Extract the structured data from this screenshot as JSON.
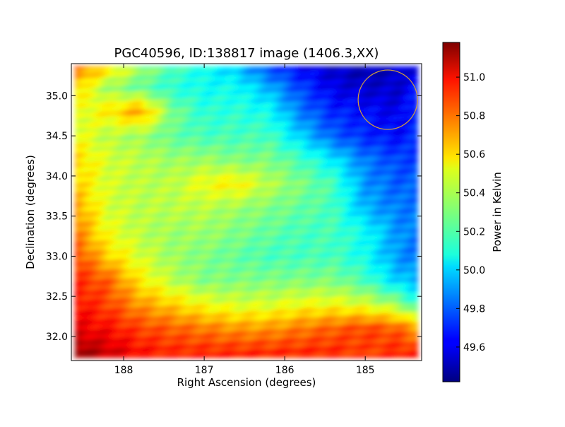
{
  "chart_data": {
    "type": "heatmap",
    "title": "PGC40596, ID:138817 image (1406.3,XX)",
    "xlabel": "Right Ascension (degrees)",
    "ylabel": "Declination (degrees)",
    "colorbar_label": "Power in Kelvin",
    "colormap": "jet",
    "xlim": [
      188.65,
      184.3
    ],
    "ylim": [
      31.7,
      35.4
    ],
    "clim": [
      49.42,
      51.18
    ],
    "x_ticks": [
      188,
      187,
      186,
      185
    ],
    "x_tick_labels": [
      "188",
      "187",
      "186",
      "185"
    ],
    "y_ticks": [
      32.0,
      32.5,
      33.0,
      33.5,
      34.0,
      34.5,
      35.0
    ],
    "y_tick_labels": [
      "32.0",
      "32.5",
      "33.0",
      "33.5",
      "34.0",
      "34.5",
      "35.0"
    ],
    "colorbar_ticks": [
      49.6,
      49.8,
      50.0,
      50.2,
      50.4,
      50.6,
      50.8,
      51.0
    ],
    "colorbar_tick_labels": [
      "49.6",
      "49.8",
      "50.0",
      "50.2",
      "50.4",
      "50.6",
      "50.8",
      "51.0"
    ],
    "x": [
      188.6,
      188.2,
      187.8,
      187.4,
      187.0,
      186.6,
      186.2,
      185.8,
      185.4,
      185.0,
      184.6,
      184.4
    ],
    "y": [
      31.8,
      32.1,
      32.4,
      32.7,
      33.0,
      33.3,
      33.6,
      33.9,
      34.2,
      34.5,
      34.8,
      35.1,
      35.3
    ],
    "z": [
      [
        51.15,
        51.05,
        50.95,
        50.9,
        50.9,
        50.9,
        50.9,
        50.9,
        50.9,
        50.85,
        50.9,
        50.9
      ],
      [
        51.0,
        50.95,
        50.85,
        50.8,
        50.75,
        50.7,
        50.7,
        50.75,
        50.8,
        50.85,
        50.8,
        50.7
      ],
      [
        50.95,
        50.85,
        50.7,
        50.6,
        50.5,
        50.45,
        50.45,
        50.5,
        50.5,
        50.45,
        50.35,
        50.2
      ],
      [
        50.9,
        50.8,
        50.55,
        50.4,
        50.3,
        50.3,
        50.3,
        50.3,
        50.3,
        50.2,
        50.0,
        49.95
      ],
      [
        50.85,
        50.6,
        50.45,
        50.35,
        50.3,
        50.25,
        50.2,
        50.2,
        50.2,
        50.1,
        49.9,
        49.85
      ],
      [
        50.75,
        50.5,
        50.4,
        50.35,
        50.35,
        50.3,
        50.25,
        50.2,
        50.2,
        50.1,
        49.9,
        49.85
      ],
      [
        50.7,
        50.45,
        50.4,
        50.4,
        50.4,
        50.35,
        50.3,
        50.25,
        50.2,
        49.95,
        49.85,
        49.85
      ],
      [
        50.6,
        50.45,
        50.4,
        50.4,
        50.5,
        50.55,
        50.4,
        50.3,
        50.2,
        49.9,
        49.8,
        49.8
      ],
      [
        50.6,
        50.45,
        50.4,
        50.35,
        50.35,
        50.3,
        50.3,
        50.2,
        50.05,
        49.85,
        49.75,
        49.75
      ],
      [
        50.5,
        50.4,
        50.35,
        50.25,
        50.2,
        50.2,
        50.2,
        50.0,
        49.8,
        49.7,
        49.65,
        49.7
      ],
      [
        50.45,
        50.55,
        50.7,
        50.3,
        50.15,
        50.15,
        50.1,
        49.85,
        49.7,
        49.65,
        49.6,
        49.7
      ],
      [
        50.6,
        50.35,
        50.25,
        50.15,
        50.1,
        50.1,
        49.95,
        49.75,
        49.6,
        49.55,
        49.55,
        49.65
      ],
      [
        50.75,
        50.55,
        50.35,
        50.2,
        50.1,
        50.0,
        49.8,
        49.65,
        49.55,
        49.5,
        49.55,
        49.6
      ]
    ],
    "annotation": {
      "shape": "circle",
      "center": [
        184.72,
        34.95
      ],
      "radius_deg": 0.37,
      "color": "#d4a13a"
    },
    "grid": false
  }
}
